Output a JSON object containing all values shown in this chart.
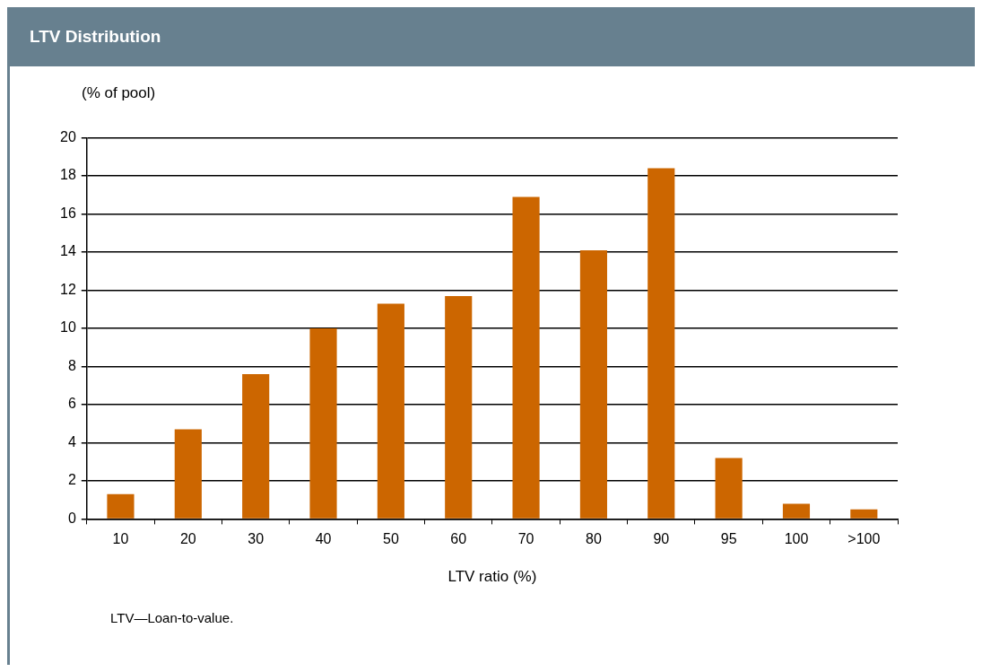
{
  "chart_data": {
    "type": "bar",
    "title": "LTV Distribution",
    "ylabel": "(% of pool)",
    "xlabel": "LTV ratio (%)",
    "categories": [
      "10",
      "20",
      "30",
      "40",
      "50",
      "60",
      "70",
      "80",
      "90",
      "95",
      "100",
      ">100"
    ],
    "values": [
      1.3,
      4.7,
      7.6,
      10.0,
      11.3,
      11.7,
      16.9,
      14.1,
      18.4,
      3.2,
      0.8,
      0.5
    ],
    "color": "#cc6600",
    "ylim": [
      0,
      20
    ],
    "yticks": [
      0,
      2,
      4,
      6,
      8,
      10,
      12,
      14,
      16,
      18,
      20
    ],
    "grid": "y",
    "annotations": [
      "LTV—Loan-to-value."
    ]
  }
}
